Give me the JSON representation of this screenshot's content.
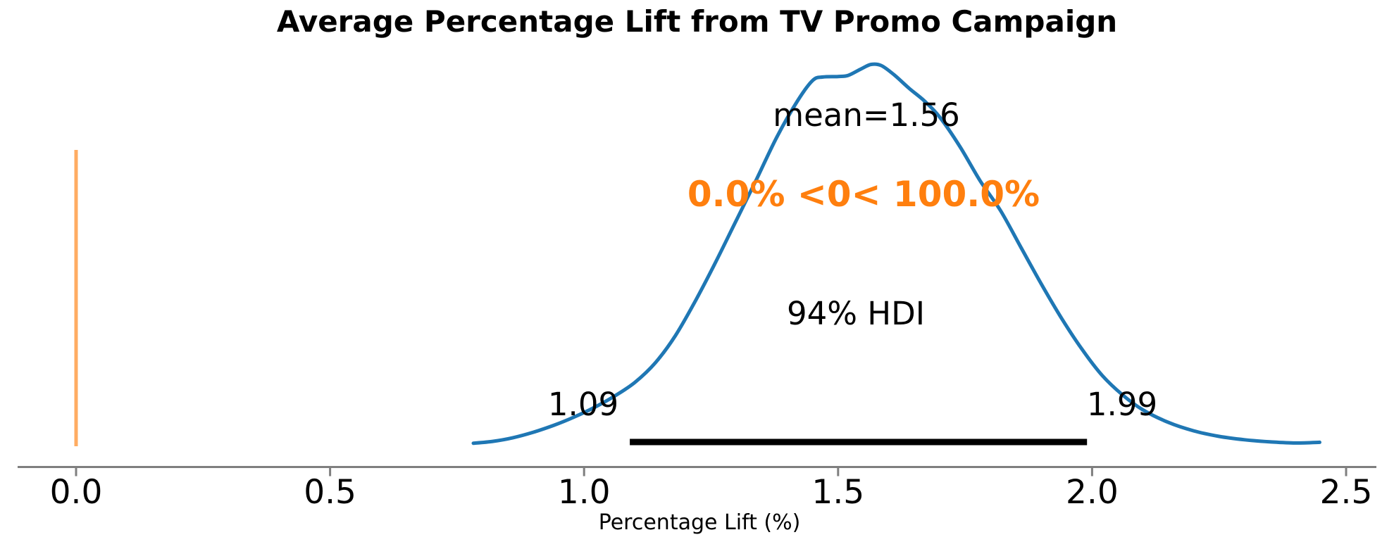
{
  "chart_data": {
    "type": "line",
    "subtype": "kde-posterior",
    "title": "Average Percentage Lift from TV Promo Campaign",
    "xlabel": "Percentage Lift (%)",
    "x_ticks": [
      "0.0",
      "0.5",
      "1.0",
      "1.5",
      "2.0",
      "2.5"
    ],
    "x_tick_values": [
      0.0,
      0.5,
      1.0,
      1.5,
      2.0,
      2.5
    ],
    "xlim": [
      -0.12,
      2.6
    ],
    "mean": 1.56,
    "mean_label": "mean=1.56",
    "hdi": {
      "prob_label": "94% HDI",
      "lower": 1.09,
      "upper": 1.99,
      "lower_label": "1.09",
      "upper_label": "1.99"
    },
    "ref_val": {
      "value": 0.0,
      "label": "0.0% <0< 100.0%"
    },
    "kde": {
      "x": [
        0.782,
        0.82,
        0.86,
        0.9,
        0.94,
        0.98,
        1.02,
        1.06,
        1.1,
        1.14,
        1.18,
        1.22,
        1.26,
        1.3,
        1.34,
        1.38,
        1.42,
        1.45,
        1.47,
        1.5,
        1.52,
        1.545,
        1.565,
        1.585,
        1.61,
        1.64,
        1.67,
        1.7,
        1.74,
        1.78,
        1.82,
        1.86,
        1.9,
        1.94,
        1.98,
        2.02,
        2.06,
        2.1,
        2.15,
        2.2,
        2.25,
        2.3,
        2.35,
        2.4,
        2.448
      ],
      "density": [
        0.004,
        0.012,
        0.028,
        0.052,
        0.082,
        0.118,
        0.16,
        0.21,
        0.27,
        0.355,
        0.475,
        0.63,
        0.8,
        0.98,
        1.16,
        1.345,
        1.5,
        1.59,
        1.605,
        1.607,
        1.612,
        1.64,
        1.66,
        1.655,
        1.615,
        1.555,
        1.5,
        1.43,
        1.3,
        1.15,
        1.02,
        0.86,
        0.7,
        0.55,
        0.415,
        0.3,
        0.215,
        0.15,
        0.095,
        0.058,
        0.034,
        0.019,
        0.01,
        0.005,
        0.008
      ]
    },
    "colors": {
      "curve": "#1f77b4",
      "ref_line": "rgba(255,127,14,0.65)",
      "ref_text": "#ff7f0e",
      "hdi_bar": "#000000",
      "axis": "#7f7f7f",
      "text": "#000000"
    }
  }
}
